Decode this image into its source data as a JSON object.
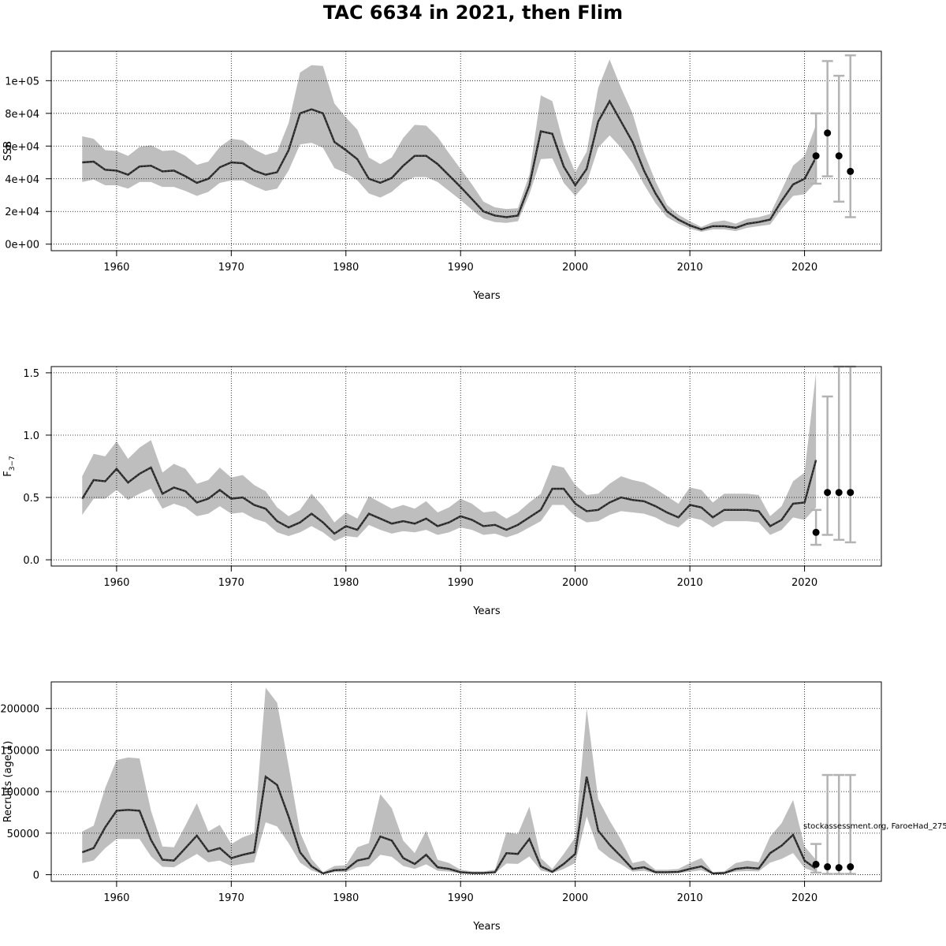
{
  "title": "TAC 6634 in 2021, then Flim",
  "credit": "stockassessment.org, FaroeHad_275",
  "colors": {
    "band": "#bebebe",
    "line": "#000000",
    "errorbar": "#b3b3b3",
    "point": "#000000",
    "grid": "#000000"
  },
  "chart_data": [
    {
      "type": "line",
      "title": "",
      "xlabel": "Years",
      "ylabel": "SSB",
      "xlim": [
        1954.3,
        2026.7
      ],
      "ylim": [
        -4000,
        118000
      ],
      "x_ticks": [
        1960,
        1970,
        1980,
        1990,
        2000,
        2010,
        2020
      ],
      "y_ticks": [
        "0e+00",
        "2e+04",
        "4e+04",
        "6e+04",
        "8e+04",
        "1e+05"
      ],
      "y_tick_values": [
        0,
        20000,
        40000,
        60000,
        80000,
        100000
      ],
      "grid": true,
      "x": [
        1957,
        1958,
        1959,
        1960,
        1961,
        1962,
        1963,
        1964,
        1965,
        1966,
        1967,
        1968,
        1969,
        1970,
        1971,
        1972,
        1973,
        1974,
        1975,
        1976,
        1977,
        1978,
        1979,
        1980,
        1981,
        1982,
        1983,
        1984,
        1985,
        1986,
        1987,
        1988,
        1989,
        1990,
        1991,
        1992,
        1993,
        1994,
        1995,
        1996,
        1997,
        1998,
        1999,
        2000,
        2001,
        2002,
        2003,
        2004,
        2005,
        2006,
        2007,
        2008,
        2009,
        2010,
        2011,
        2012,
        2013,
        2014,
        2015,
        2016,
        2017,
        2018,
        2019,
        2020,
        2021
      ],
      "estimate": [
        50000,
        50500,
        45500,
        45000,
        42500,
        47500,
        48000,
        44500,
        45000,
        41500,
        37500,
        40000,
        47000,
        50000,
        49500,
        45000,
        42500,
        44000,
        57500,
        80000,
        82500,
        80000,
        62500,
        57500,
        52000,
        40000,
        37500,
        40500,
        48000,
        54000,
        54000,
        49000,
        42000,
        35000,
        27500,
        20000,
        17500,
        16500,
        17500,
        36000,
        69000,
        67500,
        47500,
        36000,
        46000,
        75000,
        87500,
        75000,
        62500,
        45000,
        31000,
        20000,
        15000,
        11500,
        9000,
        11000,
        11000,
        10000,
        12500,
        13500,
        15000,
        26500,
        36500,
        40000,
        53000
      ],
      "lower": [
        38000,
        39500,
        36000,
        36000,
        34000,
        38000,
        38000,
        35000,
        35000,
        32500,
        29500,
        32000,
        37500,
        39000,
        39000,
        35500,
        32500,
        34000,
        45000,
        61000,
        62000,
        59000,
        46500,
        43500,
        39000,
        31000,
        28500,
        32000,
        38000,
        41000,
        41000,
        38000,
        32500,
        27000,
        21000,
        15500,
        13500,
        13000,
        14000,
        30500,
        52000,
        52500,
        37500,
        29500,
        37500,
        59000,
        66500,
        59000,
        49500,
        36500,
        25000,
        16500,
        12500,
        9500,
        7500,
        9000,
        9000,
        8000,
        10000,
        11000,
        12000,
        21500,
        29500,
        30500,
        38000
      ],
      "upper": [
        66000,
        64500,
        57500,
        57000,
        54000,
        59500,
        60500,
        57000,
        57500,
        54000,
        48500,
        50500,
        59500,
        64500,
        63500,
        58000,
        54500,
        56500,
        74000,
        105000,
        109500,
        109000,
        86000,
        77500,
        70000,
        53000,
        49000,
        53000,
        65000,
        73000,
        72500,
        65500,
        55500,
        46000,
        36500,
        26000,
        22500,
        21500,
        22000,
        42500,
        91000,
        87500,
        61000,
        44000,
        56500,
        95500,
        113000,
        95500,
        80000,
        56000,
        38500,
        24000,
        18000,
        14000,
        10500,
        13500,
        14500,
        12500,
        15500,
        16500,
        18500,
        33000,
        48000,
        54000,
        73000
      ],
      "forecast": {
        "x": [
          2021,
          2022,
          2023,
          2024
        ],
        "median": [
          54000,
          68000,
          54000,
          44500
        ],
        "low": [
          37000,
          41500,
          26000,
          16500
        ],
        "high": [
          80000,
          112000,
          103000,
          115500
        ]
      }
    },
    {
      "type": "line",
      "title": "",
      "xlabel": "Years",
      "ylabel_main": "F",
      "ylabel_sub": "3−7",
      "xlim": [
        1954.3,
        2026.7
      ],
      "ylim": [
        -0.05,
        1.55
      ],
      "x_ticks": [
        1960,
        1970,
        1980,
        1990,
        2000,
        2010,
        2020
      ],
      "y_ticks": [
        "0.0",
        "0.5",
        "1.0",
        "1.5"
      ],
      "y_tick_values": [
        0,
        0.5,
        1.0,
        1.5
      ],
      "grid": true,
      "x": [
        1957,
        1958,
        1959,
        1960,
        1961,
        1962,
        1963,
        1964,
        1965,
        1966,
        1967,
        1968,
        1969,
        1970,
        1971,
        1972,
        1973,
        1974,
        1975,
        1976,
        1977,
        1978,
        1979,
        1980,
        1981,
        1982,
        1983,
        1984,
        1985,
        1986,
        1987,
        1988,
        1989,
        1990,
        1991,
        1992,
        1993,
        1994,
        1995,
        1996,
        1997,
        1998,
        1999,
        2000,
        2001,
        2002,
        2003,
        2004,
        2005,
        2006,
        2007,
        2008,
        2009,
        2010,
        2011,
        2012,
        2013,
        2014,
        2015,
        2016,
        2017,
        2018,
        2019,
        2020,
        2021
      ],
      "estimate": [
        0.49,
        0.64,
        0.63,
        0.73,
        0.62,
        0.69,
        0.74,
        0.53,
        0.58,
        0.55,
        0.46,
        0.49,
        0.56,
        0.49,
        0.5,
        0.44,
        0.41,
        0.31,
        0.26,
        0.3,
        0.37,
        0.3,
        0.21,
        0.27,
        0.24,
        0.37,
        0.33,
        0.29,
        0.31,
        0.29,
        0.33,
        0.27,
        0.3,
        0.35,
        0.32,
        0.27,
        0.28,
        0.24,
        0.28,
        0.34,
        0.4,
        0.57,
        0.57,
        0.45,
        0.39,
        0.4,
        0.46,
        0.5,
        0.48,
        0.47,
        0.43,
        0.38,
        0.34,
        0.44,
        0.42,
        0.34,
        0.4,
        0.4,
        0.4,
        0.39,
        0.27,
        0.32,
        0.45,
        0.46,
        0.8
      ],
      "lower": [
        0.36,
        0.49,
        0.49,
        0.56,
        0.48,
        0.53,
        0.57,
        0.41,
        0.45,
        0.42,
        0.35,
        0.37,
        0.43,
        0.37,
        0.38,
        0.33,
        0.3,
        0.22,
        0.19,
        0.22,
        0.27,
        0.22,
        0.15,
        0.19,
        0.18,
        0.28,
        0.24,
        0.21,
        0.23,
        0.22,
        0.24,
        0.2,
        0.22,
        0.26,
        0.24,
        0.2,
        0.21,
        0.18,
        0.21,
        0.26,
        0.31,
        0.44,
        0.44,
        0.35,
        0.3,
        0.31,
        0.36,
        0.39,
        0.38,
        0.37,
        0.34,
        0.29,
        0.26,
        0.34,
        0.32,
        0.26,
        0.31,
        0.31,
        0.31,
        0.3,
        0.2,
        0.24,
        0.34,
        0.32,
        0.42
      ],
      "upper": [
        0.67,
        0.85,
        0.83,
        0.95,
        0.81,
        0.9,
        0.96,
        0.7,
        0.77,
        0.73,
        0.61,
        0.64,
        0.74,
        0.66,
        0.68,
        0.6,
        0.55,
        0.42,
        0.35,
        0.4,
        0.53,
        0.43,
        0.3,
        0.38,
        0.33,
        0.51,
        0.46,
        0.41,
        0.44,
        0.41,
        0.47,
        0.38,
        0.42,
        0.49,
        0.45,
        0.38,
        0.39,
        0.33,
        0.38,
        0.46,
        0.53,
        0.76,
        0.74,
        0.6,
        0.52,
        0.53,
        0.61,
        0.67,
        0.64,
        0.62,
        0.57,
        0.51,
        0.45,
        0.58,
        0.56,
        0.46,
        0.53,
        0.53,
        0.53,
        0.52,
        0.35,
        0.43,
        0.63,
        0.7,
        1.5
      ],
      "forecast": {
        "x": [
          2021,
          2022,
          2023,
          2024
        ],
        "median": [
          0.22,
          0.54,
          0.54,
          0.54
        ],
        "low": [
          0.12,
          0.2,
          0.16,
          0.14
        ],
        "high": [
          0.4,
          1.31,
          1.55,
          1.55
        ]
      }
    },
    {
      "type": "line",
      "title": "",
      "xlabel": "Years",
      "ylabel": "Recruits (age 1)",
      "xlim": [
        1954.3,
        2026.7
      ],
      "ylim": [
        -8000,
        232000
      ],
      "x_ticks": [
        1960,
        1970,
        1980,
        1990,
        2000,
        2010,
        2020
      ],
      "y_ticks": [
        "0",
        "50000",
        "100000",
        "150000",
        "200000"
      ],
      "y_tick_values": [
        0,
        50000,
        100000,
        150000,
        200000
      ],
      "grid": true,
      "x": [
        1957,
        1958,
        1959,
        1960,
        1961,
        1962,
        1963,
        1964,
        1965,
        1966,
        1967,
        1968,
        1969,
        1970,
        1971,
        1972,
        1973,
        1974,
        1975,
        1976,
        1977,
        1978,
        1979,
        1980,
        1981,
        1982,
        1983,
        1984,
        1985,
        1986,
        1987,
        1988,
        1989,
        1990,
        1991,
        1992,
        1993,
        1994,
        1995,
        1996,
        1997,
        1998,
        1999,
        2000,
        2001,
        2002,
        2003,
        2004,
        2005,
        2006,
        2007,
        2008,
        2009,
        2010,
        2011,
        2012,
        2013,
        2014,
        2015,
        2016,
        2017,
        2018,
        2019,
        2020,
        2021
      ],
      "estimate": [
        27000,
        32000,
        57000,
        77000,
        78000,
        77000,
        42000,
        18000,
        17000,
        32000,
        47000,
        28000,
        32000,
        20000,
        24000,
        27000,
        118000,
        108000,
        70000,
        27000,
        10000,
        1500,
        5500,
        6000,
        17000,
        20000,
        46000,
        41000,
        20000,
        13000,
        24000,
        9000,
        7000,
        3000,
        2000,
        2000,
        3000,
        26000,
        25000,
        43000,
        10000,
        3500,
        13000,
        25000,
        118000,
        53000,
        36000,
        22000,
        7000,
        9000,
        3000,
        3000,
        3500,
        7000,
        10000,
        1500,
        2000,
        7000,
        8500,
        7500,
        26000,
        35000,
        48000,
        17000,
        7000
      ],
      "lower": [
        14000,
        17000,
        32000,
        43000,
        43000,
        43000,
        22000,
        9500,
        9000,
        17000,
        25000,
        15000,
        17000,
        10500,
        13000,
        15000,
        63000,
        58000,
        38000,
        14500,
        5200,
        700,
        3000,
        3200,
        9000,
        10500,
        24000,
        21500,
        10500,
        7000,
        12500,
        4700,
        3700,
        1500,
        1000,
        1000,
        1500,
        13500,
        13000,
        22000,
        5000,
        1800,
        7000,
        14000,
        70000,
        31000,
        20000,
        12500,
        3700,
        4700,
        1500,
        1500,
        1800,
        3700,
        5300,
        700,
        1000,
        3700,
        4500,
        4000,
        14500,
        19000,
        26000,
        8000,
        3000
      ],
      "upper": [
        52000,
        59000,
        104000,
        138000,
        141000,
        140000,
        77000,
        34000,
        33000,
        59000,
        86000,
        52000,
        60000,
        37000,
        45000,
        50000,
        225000,
        207000,
        131000,
        51000,
        19000,
        3200,
        10500,
        11500,
        33000,
        38000,
        97000,
        80000,
        41000,
        26000,
        53000,
        18000,
        14000,
        6000,
        4000,
        4000,
        6000,
        51000,
        49000,
        82000,
        20000,
        7000,
        25000,
        45000,
        200000,
        91000,
        65000,
        42000,
        14000,
        17000,
        6000,
        6000,
        7000,
        14000,
        20000,
        3000,
        4000,
        14000,
        17000,
        15000,
        46000,
        62000,
        90000,
        34000,
        18000
      ],
      "forecast": {
        "x": [
          2021,
          2022,
          2023,
          2024
        ],
        "median": [
          12500,
          9500,
          8500,
          9500
        ],
        "low": [
          2500,
          1000,
          1000,
          1000
        ],
        "high": [
          37000,
          120000,
          120000,
          120000
        ]
      }
    }
  ]
}
